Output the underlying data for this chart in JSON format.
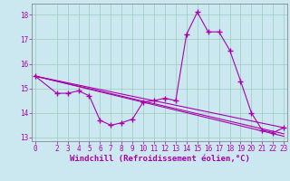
{
  "xlabel": "Windchill (Refroidissement éolien,°C)",
  "bg_color": "#cbe8f0",
  "line_color": "#aa00aa",
  "grid_color": "#99ccbb",
  "main_x": [
    0,
    2,
    3,
    4,
    5,
    6,
    7,
    8,
    9,
    10,
    11,
    12,
    13,
    14,
    15,
    16,
    17,
    18,
    19,
    20,
    21,
    22,
    23
  ],
  "main_y": [
    15.5,
    14.8,
    14.8,
    14.9,
    14.7,
    13.7,
    13.5,
    13.6,
    13.75,
    14.45,
    14.5,
    14.6,
    14.5,
    17.2,
    18.1,
    17.3,
    17.3,
    16.55,
    15.3,
    14.0,
    13.3,
    13.2,
    13.4
  ],
  "trend1_x": [
    0,
    23
  ],
  "trend1_y": [
    15.5,
    13.15
  ],
  "trend2_x": [
    0,
    23
  ],
  "trend2_y": [
    15.5,
    13.05
  ],
  "trend3_x": [
    0,
    23
  ],
  "trend3_y": [
    15.5,
    13.4
  ],
  "ylim": [
    12.85,
    18.45
  ],
  "yticks": [
    13,
    14,
    15,
    16,
    17,
    18
  ],
  "xlim": [
    -0.3,
    23.3
  ],
  "xticks": [
    0,
    2,
    3,
    4,
    5,
    6,
    7,
    8,
    9,
    10,
    11,
    12,
    13,
    14,
    15,
    16,
    17,
    18,
    19,
    20,
    21,
    22,
    23
  ],
  "marker": "+",
  "markersize": 4,
  "linewidth": 0.8,
  "fontsize_label": 6.5,
  "fontsize_tick": 5.5
}
